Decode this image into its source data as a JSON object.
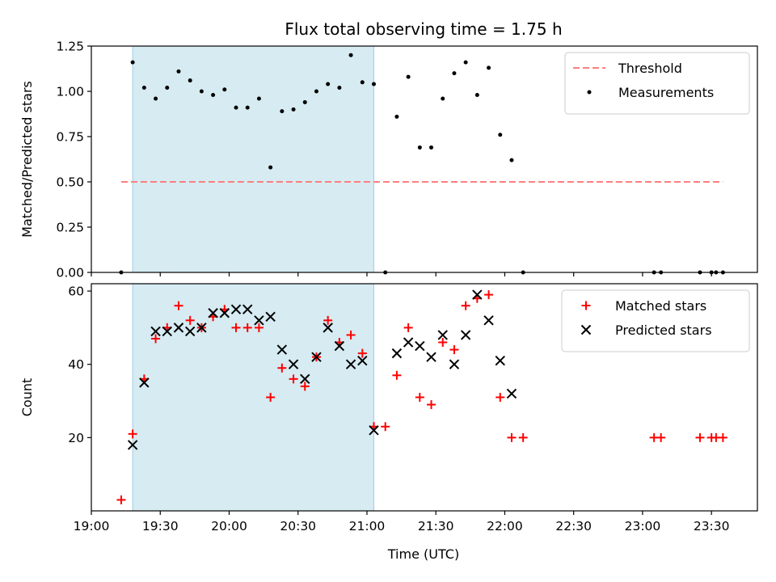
{
  "figure_title": "Flux total observing time = 1.75 h",
  "chart_data": [
    {
      "type": "scatter",
      "ylabel": "Matched/Predicted stars",
      "xlim": [
        "19:00",
        "23:50"
      ],
      "ylim": [
        0,
        1.25
      ],
      "yticks": [
        "0.00",
        "0.25",
        "0.50",
        "0.75",
        "1.00",
        "1.25"
      ],
      "shaded_x": [
        "19:18",
        "21:03"
      ],
      "shaded_color": "#add8e6",
      "legend": "upper-right",
      "threshold": {
        "name": "Threshold",
        "y": 0.5,
        "x": [
          "19:13",
          "23:35"
        ],
        "color": "#ff7f7f",
        "style": "dashed"
      },
      "series": [
        {
          "name": "Measurements",
          "marker": "dot",
          "color": "#000000",
          "points": [
            [
              "19:13",
              0.0
            ],
            [
              "19:18",
              1.16
            ],
            [
              "19:23",
              1.02
            ],
            [
              "19:28",
              0.96
            ],
            [
              "19:33",
              1.02
            ],
            [
              "19:38",
              1.11
            ],
            [
              "19:43",
              1.06
            ],
            [
              "19:48",
              1.0
            ],
            [
              "19:53",
              0.98
            ],
            [
              "19:58",
              1.01
            ],
            [
              "20:03",
              0.91
            ],
            [
              "20:08",
              0.91
            ],
            [
              "20:13",
              0.96
            ],
            [
              "20:18",
              0.58
            ],
            [
              "20:23",
              0.89
            ],
            [
              "20:28",
              0.9
            ],
            [
              "20:33",
              0.94
            ],
            [
              "20:38",
              1.0
            ],
            [
              "20:43",
              1.04
            ],
            [
              "20:48",
              1.02
            ],
            [
              "20:53",
              1.2
            ],
            [
              "20:58",
              1.05
            ],
            [
              "21:03",
              1.04
            ],
            [
              "21:08",
              0.0
            ],
            [
              "21:13",
              0.86
            ],
            [
              "21:18",
              1.08
            ],
            [
              "21:23",
              0.69
            ],
            [
              "21:28",
              0.69
            ],
            [
              "21:33",
              0.96
            ],
            [
              "21:38",
              1.1
            ],
            [
              "21:43",
              1.16
            ],
            [
              "21:48",
              0.98
            ],
            [
              "21:53",
              1.13
            ],
            [
              "21:58",
              0.76
            ],
            [
              "22:03",
              0.62
            ],
            [
              "22:08",
              0.0
            ],
            [
              "23:05",
              0.0
            ],
            [
              "23:08",
              0.0
            ],
            [
              "23:25",
              0.0
            ],
            [
              "23:30",
              0.0
            ],
            [
              "23:32",
              0.0
            ],
            [
              "23:35",
              0.0
            ]
          ]
        }
      ]
    },
    {
      "type": "scatter",
      "ylabel": "Count",
      "xlabel": "Time (UTC)",
      "xlim": [
        "19:00",
        "23:50"
      ],
      "ylim": [
        0,
        62
      ],
      "yticks": [
        "20",
        "40",
        "60"
      ],
      "xticks": [
        "19:00",
        "19:30",
        "20:00",
        "20:30",
        "21:00",
        "21:30",
        "22:00",
        "22:30",
        "23:00",
        "23:30"
      ],
      "shaded_x": [
        "19:18",
        "21:03"
      ],
      "shaded_color": "#add8e6",
      "legend": "upper-right",
      "series": [
        {
          "name": "Matched stars",
          "marker": "plus",
          "color": "#ff0000",
          "points": [
            [
              "19:13",
              3
            ],
            [
              "19:18",
              21
            ],
            [
              "19:23",
              36
            ],
            [
              "19:28",
              47
            ],
            [
              "19:33",
              50
            ],
            [
              "19:38",
              56
            ],
            [
              "19:43",
              52
            ],
            [
              "19:48",
              50
            ],
            [
              "19:53",
              53
            ],
            [
              "19:58",
              55
            ],
            [
              "20:03",
              50
            ],
            [
              "20:08",
              50
            ],
            [
              "20:13",
              50
            ],
            [
              "20:18",
              31
            ],
            [
              "20:23",
              39
            ],
            [
              "20:28",
              36
            ],
            [
              "20:33",
              34
            ],
            [
              "20:38",
              42
            ],
            [
              "20:43",
              52
            ],
            [
              "20:48",
              46
            ],
            [
              "20:53",
              48
            ],
            [
              "20:58",
              43
            ],
            [
              "21:03",
              23
            ],
            [
              "21:08",
              23
            ],
            [
              "21:13",
              37
            ],
            [
              "21:18",
              50
            ],
            [
              "21:23",
              31
            ],
            [
              "21:28",
              29
            ],
            [
              "21:33",
              46
            ],
            [
              "21:38",
              44
            ],
            [
              "21:43",
              56
            ],
            [
              "21:48",
              58
            ],
            [
              "21:53",
              59
            ],
            [
              "21:58",
              31
            ],
            [
              "22:03",
              20
            ],
            [
              "22:08",
              20
            ],
            [
              "23:05",
              20
            ],
            [
              "23:08",
              20
            ],
            [
              "23:25",
              20
            ],
            [
              "23:30",
              20
            ],
            [
              "23:32",
              20
            ],
            [
              "23:35",
              20
            ]
          ]
        },
        {
          "name": "Predicted stars",
          "marker": "x",
          "color": "#000000",
          "points": [
            [
              "19:18",
              18
            ],
            [
              "19:23",
              35
            ],
            [
              "19:28",
              49
            ],
            [
              "19:33",
              49
            ],
            [
              "19:38",
              50
            ],
            [
              "19:43",
              49
            ],
            [
              "19:48",
              50
            ],
            [
              "19:53",
              54
            ],
            [
              "19:58",
              54
            ],
            [
              "20:03",
              55
            ],
            [
              "20:08",
              55
            ],
            [
              "20:13",
              52
            ],
            [
              "20:18",
              53
            ],
            [
              "20:23",
              44
            ],
            [
              "20:28",
              40
            ],
            [
              "20:33",
              36
            ],
            [
              "20:38",
              42
            ],
            [
              "20:43",
              50
            ],
            [
              "20:48",
              45
            ],
            [
              "20:53",
              40
            ],
            [
              "20:58",
              41
            ],
            [
              "21:03",
              22
            ],
            [
              "21:13",
              43
            ],
            [
              "21:18",
              46
            ],
            [
              "21:23",
              45
            ],
            [
              "21:28",
              42
            ],
            [
              "21:33",
              48
            ],
            [
              "21:38",
              40
            ],
            [
              "21:43",
              48
            ],
            [
              "21:48",
              59
            ],
            [
              "21:53",
              52
            ],
            [
              "21:58",
              41
            ],
            [
              "22:03",
              32
            ]
          ]
        }
      ]
    }
  ]
}
